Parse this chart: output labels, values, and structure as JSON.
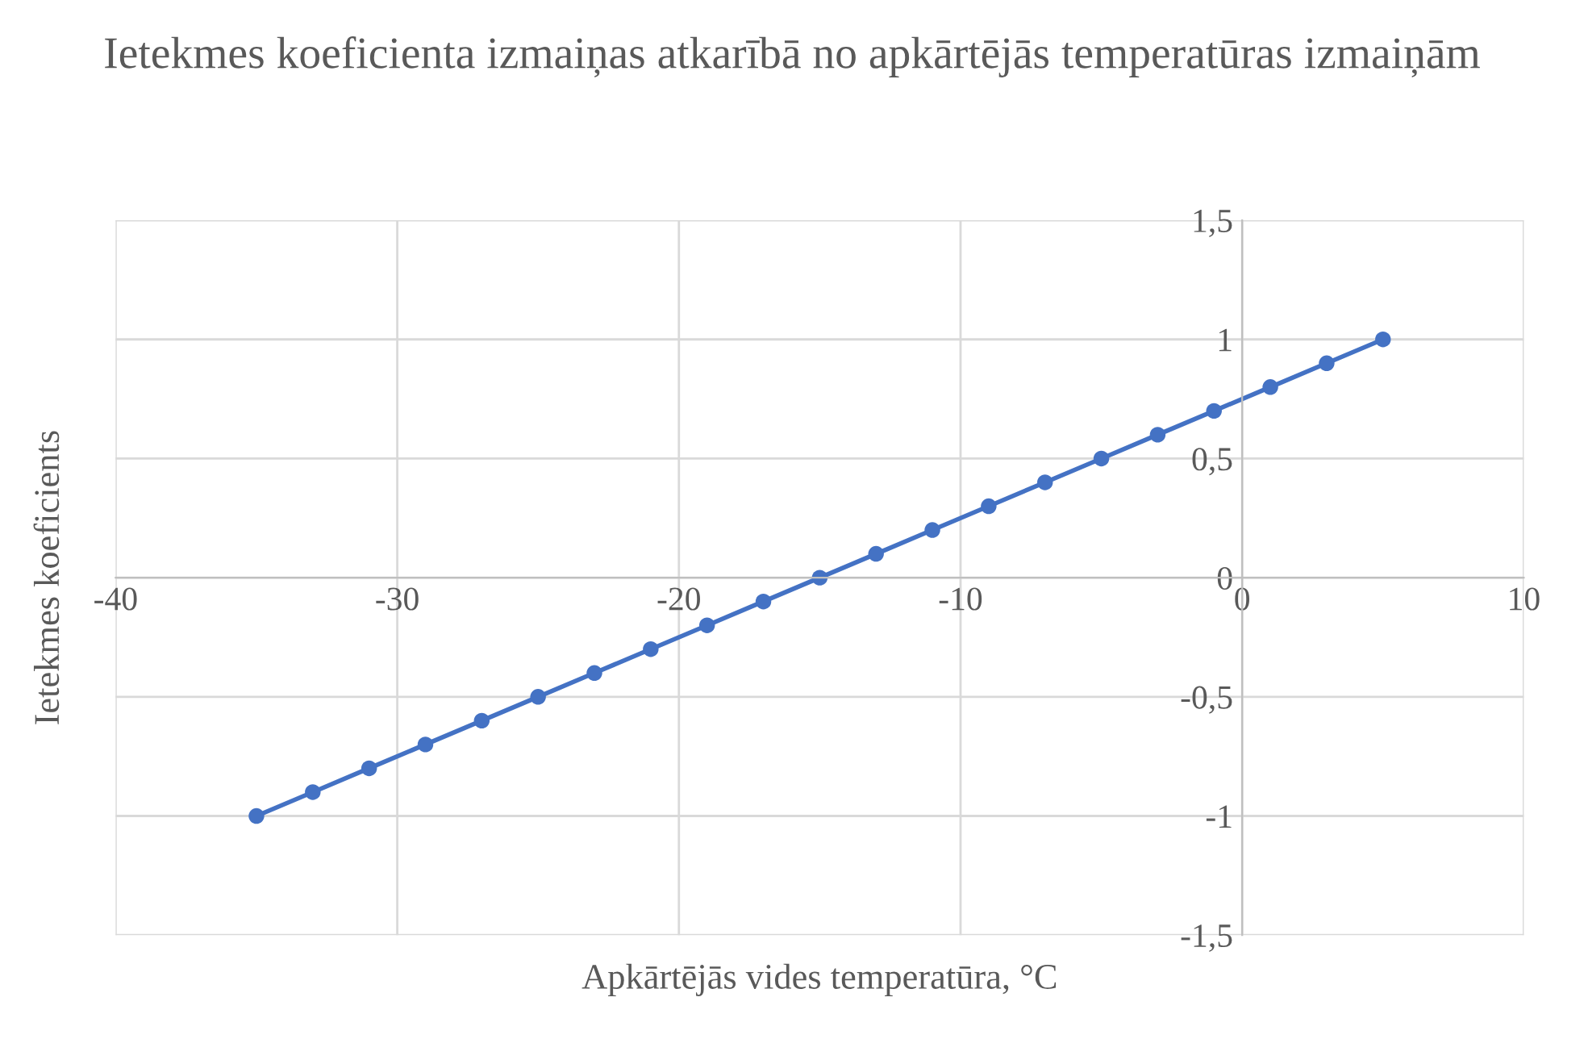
{
  "chart_data": {
    "type": "line",
    "title": "Ietekmes koeficienta izmaiņas atkarībā no apkārtējās temperatūras izmaiņām",
    "xlabel": "Apkārtējās vides temperatūra, °C",
    "ylabel": "Ietekmes koeficients",
    "x": [
      -35,
      -33,
      -31,
      -29,
      -27,
      -25,
      -23,
      -21,
      -19,
      -17,
      -15,
      -13,
      -11,
      -9,
      -7,
      -5,
      -3,
      -1,
      1,
      3,
      5
    ],
    "series": [
      {
        "color": "#4472c4",
        "values": [
          -1,
          -0.9,
          -0.8,
          -0.7,
          -0.6,
          -0.5,
          -0.4,
          -0.3,
          -0.2,
          -0.1,
          0,
          0.1,
          0.2,
          0.3,
          0.4,
          0.5,
          0.6,
          0.7,
          0.8,
          0.9,
          1
        ]
      }
    ],
    "xlim": [
      -40,
      10
    ],
    "xticks": [
      -40,
      -30,
      -20,
      -10,
      0,
      10
    ],
    "ylim": [
      -1.5,
      1.5
    ],
    "yticks": [
      {
        "value": -1.5,
        "label": "-1,5"
      },
      -1,
      {
        "value": -0.5,
        "label": "-0,5"
      },
      0,
      {
        "value": 0.5,
        "label": "0,5"
      },
      1,
      {
        "value": 1.5,
        "label": "1,5"
      }
    ],
    "grid": true,
    "marker": "circle",
    "line_style": "solid"
  }
}
